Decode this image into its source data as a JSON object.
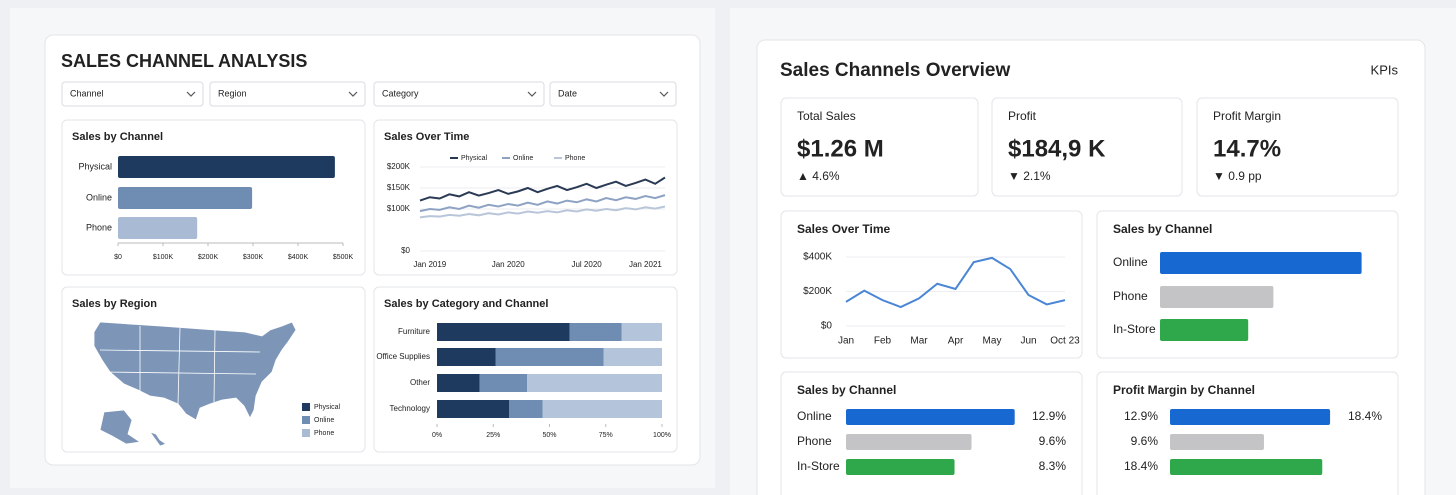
{
  "left": {
    "title": "SALES CHANNEL ANALYSIS",
    "filters": [
      "Channel",
      "Region",
      "Category",
      "Date"
    ],
    "charts": [
      {
        "type": "hbar",
        "title": "Sales by Channel",
        "categories": [
          "Physical",
          "Online",
          "Phone"
        ],
        "values": [
          482000,
          298000,
          176000
        ],
        "colors": [
          "#1f3a5f",
          "#6f8db3",
          "#a9bbd4"
        ],
        "xlim": [
          0,
          500000
        ],
        "xticks": [
          {
            "value": 0,
            "label": "$0"
          },
          {
            "value": 100000,
            "label": "$100K"
          },
          {
            "value": 200000,
            "label": "$200K"
          },
          {
            "value": 300000,
            "label": "$300K"
          },
          {
            "value": 400000,
            "label": "$400K"
          },
          {
            "value": 500000,
            "label": "$500K"
          }
        ]
      },
      {
        "type": "line",
        "title": "Sales Over Time",
        "categories": [
          null,
          "Jan 2019",
          null,
          null,
          null,
          null,
          null,
          null,
          null,
          "Jan 2020",
          null,
          null,
          null,
          null,
          null,
          null,
          null,
          "Jul 2020",
          null,
          null,
          null,
          null,
          null,
          "Jan 2021",
          null,
          null
        ],
        "series": [
          {
            "name": "Physical",
            "color": "#2a3a55",
            "values": [
              120000,
              128000,
              125000,
              135000,
              130000,
              140000,
              132000,
              138000,
              145000,
              136000,
              142000,
              150000,
              140000,
              148000,
              155000,
              145000,
              152000,
              160000,
              150000,
              158000,
              165000,
              155000,
              162000,
              170000,
              160000,
              175000
            ]
          },
          {
            "name": "Online",
            "color": "#8ea3c4",
            "values": [
              95000,
              100000,
              98000,
              104000,
              100000,
              108000,
              103000,
              110000,
              106000,
              112000,
              108000,
              115000,
              110000,
              118000,
              113000,
              120000,
              116000,
              123000,
              118000,
              126000,
              121000,
              128000,
              124000,
              131000,
              126000,
              133000
            ]
          },
          {
            "name": "Phone",
            "color": "#b9c6da",
            "values": [
              80000,
              83000,
              82000,
              86000,
              84000,
              88000,
              85000,
              90000,
              87000,
              92000,
              89000,
              94000,
              91000,
              95000,
              92000,
              97000,
              94000,
              99000,
              96000,
              100000,
              97000,
              102000,
              99000,
              104000,
              101000,
              106000
            ]
          }
        ],
        "ylim": [
          0,
          200000
        ],
        "yticks": [
          {
            "value": 0,
            "label": "$0"
          },
          {
            "value": 100000,
            "label": "$100K"
          },
          {
            "value": 150000,
            "label": "$150K"
          },
          {
            "value": 200000,
            "label": "$200K"
          }
        ]
      },
      {
        "type": "map",
        "title": "Sales by Region",
        "legend": [
          {
            "name": "Physical",
            "color": "#1f3a5f"
          },
          {
            "name": "Online",
            "color": "#6f8db3"
          },
          {
            "name": "Phone",
            "color": "#a9bbd4"
          }
        ]
      },
      {
        "type": "stacked_hbar",
        "title": "Sales by Category and Channel",
        "categories": [
          "Furniture",
          "Office Supplies",
          "Other",
          "Technology"
        ],
        "series": [
          {
            "name": "Physical",
            "color": "#1f3a5f",
            "values": [
              59,
              26,
              19,
              32
            ]
          },
          {
            "name": "Online",
            "color": "#6f8db3",
            "values": [
              23,
              48,
              21,
              15
            ]
          },
          {
            "name": "Phone",
            "color": "#b4c4da",
            "values": [
              18,
              26,
              60,
              53
            ]
          }
        ],
        "xlim": [
          0,
          100
        ],
        "xticks": [
          {
            "value": 0,
            "label": "0%"
          },
          {
            "value": 25,
            "label": "25%"
          },
          {
            "value": 50,
            "label": "50%"
          },
          {
            "value": 75,
            "label": "75%"
          },
          {
            "value": 100,
            "label": "100%"
          }
        ]
      }
    ]
  },
  "right": {
    "title": "Sales Channels Overview",
    "tab": "KPIs",
    "kpis": [
      {
        "label": "Total Sales",
        "value": "$1.26 M",
        "change": "▲ 4.6%",
        "color": "#2ea84a"
      },
      {
        "label": "Profit",
        "value": "$184,9 K",
        "change": "▼ 2.1%",
        "color": "#d93a3a"
      },
      {
        "label": "Profit Margin",
        "value": "14.7%",
        "change": "▼ 0.9 pp",
        "color": "#d93a3a"
      }
    ],
    "charts": [
      {
        "type": "line",
        "title": "Sales Over Time",
        "categories": [
          "Jan",
          null,
          "Feb",
          null,
          "Mar",
          null,
          "Apr",
          null,
          "May",
          null,
          "Jun",
          null,
          "Oct 23"
        ],
        "series": [
          {
            "name": "Sales",
            "color": "#4a86d4",
            "values": [
              140000,
              205000,
              150000,
              110000,
              160000,
              245000,
              215000,
              370000,
              395000,
              330000,
              180000,
              125000,
              150000
            ]
          }
        ],
        "ylim": [
          0,
          400000
        ],
        "yticks": [
          {
            "value": 0,
            "label": "$0"
          },
          {
            "value": 200000,
            "label": "$200K"
          },
          {
            "value": 400000,
            "label": "$400K"
          }
        ]
      },
      {
        "type": "hbar",
        "title": "Sales by Channel",
        "categories": [
          "Online",
          "Phone",
          "In-Store"
        ],
        "values": [
          96,
          54,
          42
        ],
        "colors": [
          "#1769d1",
          "#c4c4c6",
          "#2ea84a"
        ],
        "xlim": [
          0,
          100
        ]
      },
      {
        "type": "hbar",
        "title": "Sales by Channel",
        "categories": [
          "Online",
          "Phone",
          "In-Store"
        ],
        "values": [
          12.9,
          9.6,
          8.3
        ],
        "value_labels": [
          "12.9%",
          "9.6%",
          "8.3%"
        ],
        "colors": [
          "#1769d1",
          "#c4c4c6",
          "#2ea84a"
        ],
        "xlim": [
          0,
          13
        ]
      },
      {
        "type": "hbar",
        "title": "Profit Margin by Channel",
        "categories": [
          "12.9%",
          "9.6%",
          "18.4%"
        ],
        "values": [
          18.4,
          10.8,
          17.5
        ],
        "value_labels": [
          "18.4%",
          null,
          null
        ],
        "colors": [
          "#1769d1",
          "#c4c4c6",
          "#2ea84a"
        ],
        "xlim": [
          0,
          20
        ]
      }
    ]
  }
}
